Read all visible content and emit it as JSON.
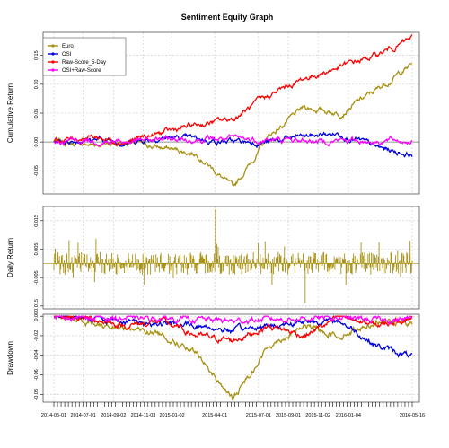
{
  "chart_data": {
    "type": "line",
    "title": "Sentiment Equity Graph",
    "x": [
      "2014-05-01",
      "2014-07-01",
      "2014-09-02",
      "2014-11-03",
      "2015-01-02",
      "2015-04-01",
      "2015-07-01",
      "2015-09-01",
      "2015-11-02",
      "2016-01-04",
      "2016-05-16"
    ],
    "legend_position": "top-left",
    "grid": true,
    "series": [
      {
        "name": "Euro",
        "color": "#a8900f",
        "values": [
          0.0,
          -0.005,
          0.0,
          -0.01,
          -0.02,
          -0.08,
          0.01,
          0.06,
          0.05,
          0.09,
          0.135
        ]
      },
      {
        "name": "OSI",
        "color": "#0000e0",
        "values": [
          0.0,
          0.005,
          0.0,
          0.008,
          0.005,
          0.0,
          0.0,
          0.01,
          0.015,
          -0.01,
          -0.022
        ]
      },
      {
        "name": "Raw-Score_5-Day",
        "color": "#ff0000",
        "values": [
          0.0,
          0.01,
          0.0,
          0.015,
          0.03,
          0.04,
          0.08,
          0.11,
          0.13,
          0.15,
          0.18
        ]
      },
      {
        "name": "OSI+Raw-Score",
        "color": "#ff00ff",
        "values": [
          0.0,
          0.003,
          0.0,
          0.004,
          0.005,
          0.005,
          0.003,
          0.002,
          0.003,
          0.002,
          0.003
        ]
      }
    ],
    "panels": [
      {
        "ylabel": "Cumulative Return",
        "yticks": [
          "0.15",
          "0.10",
          "0.05",
          "0.00",
          "-0.05"
        ],
        "ylim": [
          -0.09,
          0.19
        ]
      },
      {
        "ylabel": "Daily Return",
        "yticks": [
          "0.015",
          "0.005",
          "-0.005",
          "-0.015"
        ],
        "ylim": [
          -0.016,
          0.02
        ]
      },
      {
        "ylabel": "Drawdown",
        "yticks": [
          "0.00",
          "-0.02",
          "-0.04",
          "-0.06",
          "-0.08"
        ],
        "ylim": [
          -0.088,
          0.002
        ]
      }
    ],
    "daily_return": {
      "series": "Euro",
      "min": -0.014,
      "max": 0.019
    },
    "drawdown": {
      "Euro": [
        0.0,
        -0.006,
        -0.012,
        -0.018,
        -0.04,
        -0.085,
        -0.03,
        -0.01,
        -0.02,
        -0.005,
        -0.008
      ],
      "OSI": [
        0.0,
        -0.001,
        -0.005,
        -0.008,
        -0.01,
        -0.015,
        -0.01,
        -0.005,
        -0.005,
        -0.03,
        -0.042
      ],
      "Raw-Score_5-Day": [
        0.0,
        -0.002,
        -0.01,
        -0.005,
        -0.02,
        -0.025,
        -0.01,
        -0.02,
        0.0,
        -0.01,
        0.0
      ],
      "OSI+Raw-Score": [
        0.0,
        -0.001,
        -0.002,
        -0.002,
        -0.003,
        -0.005,
        -0.003,
        -0.002,
        -0.002,
        -0.004,
        -0.003
      ]
    }
  }
}
